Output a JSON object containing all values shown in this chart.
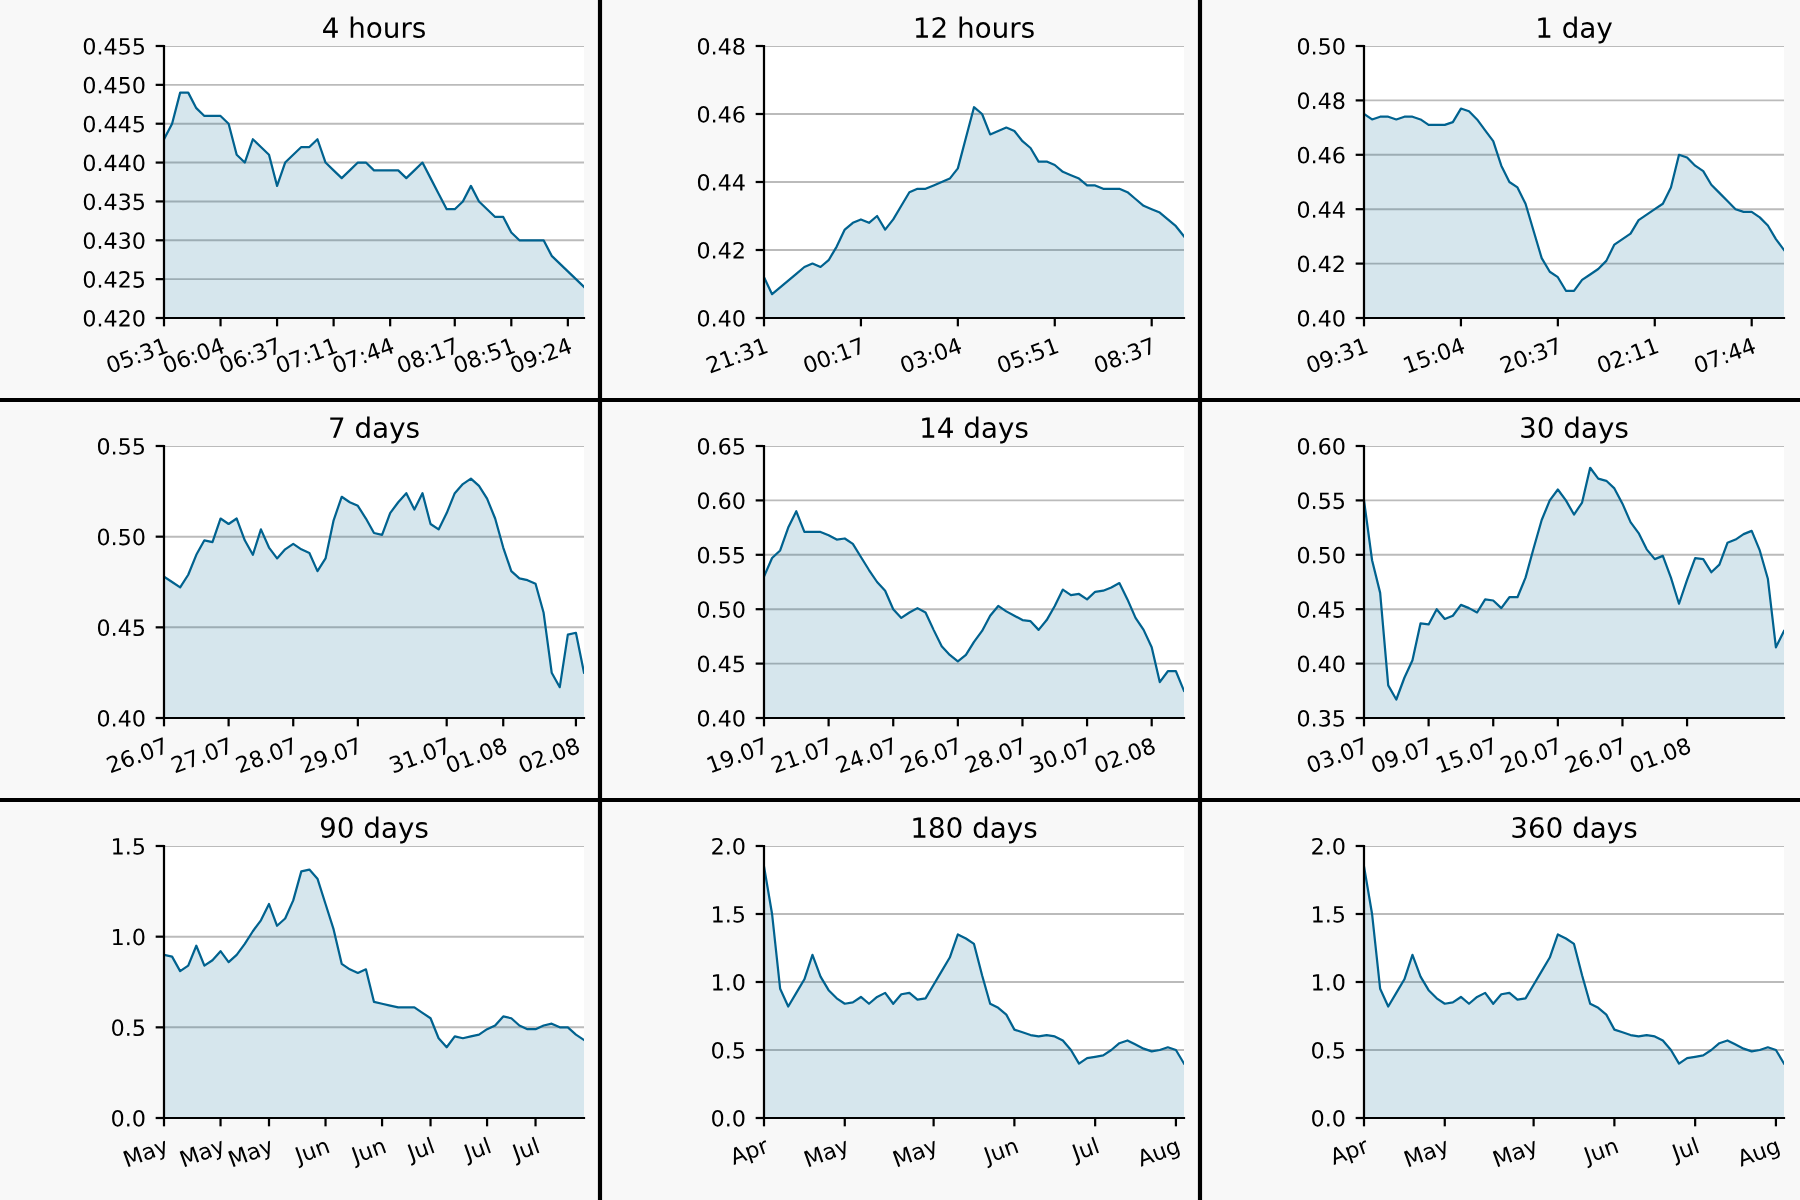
{
  "chart_data": [
    {
      "type": "area",
      "title": "4 hours",
      "color": "#00628f",
      "grid": "y",
      "categories": [
        "05:31",
        null,
        null,
        null,
        null,
        null,
        null,
        "06:04",
        null,
        null,
        null,
        null,
        null,
        null,
        "06:37",
        null,
        null,
        null,
        null,
        null,
        null,
        "07:11",
        null,
        null,
        null,
        null,
        null,
        null,
        "07:44",
        null,
        null,
        null,
        null,
        null,
        null,
        null,
        "08:17",
        null,
        null,
        null,
        null,
        null,
        null,
        "08:51",
        null,
        null,
        null,
        null,
        null,
        null,
        "09:24",
        null,
        null
      ],
      "values": [
        0.443,
        0.445,
        0.449,
        0.449,
        0.447,
        0.446,
        0.446,
        0.446,
        0.445,
        0.441,
        0.44,
        0.443,
        0.442,
        0.441,
        0.437,
        0.44,
        0.441,
        0.442,
        0.442,
        0.443,
        0.44,
        0.439,
        0.438,
        0.439,
        0.44,
        0.44,
        0.439,
        0.439,
        0.439,
        0.439,
        0.438,
        0.439,
        0.44,
        0.438,
        0.436,
        0.434,
        0.434,
        0.435,
        0.437,
        0.435,
        0.434,
        0.433,
        0.433,
        0.431,
        0.43,
        0.43,
        0.43,
        0.43,
        0.428,
        0.427,
        0.426,
        0.425,
        0.424
      ],
      "ylim": [
        0.42,
        0.455
      ],
      "yticks": [
        {
          "value": 0.42,
          "label": "0.420"
        },
        {
          "value": 0.425,
          "label": "0.425"
        },
        {
          "value": 0.43,
          "label": "0.430"
        },
        {
          "value": 0.435,
          "label": "0.435"
        },
        {
          "value": 0.44,
          "label": "0.440"
        },
        {
          "value": 0.445,
          "label": "0.445"
        },
        {
          "value": 0.45,
          "label": "0.450"
        },
        {
          "value": 0.455,
          "label": "0.455"
        }
      ]
    },
    {
      "type": "area",
      "title": "12 hours",
      "color": "#00628f",
      "grid": "y",
      "categories": [
        "21:31",
        null,
        null,
        null,
        null,
        null,
        null,
        null,
        null,
        null,
        null,
        null,
        "00:17",
        null,
        null,
        null,
        null,
        null,
        null,
        null,
        null,
        null,
        null,
        null,
        "03:04",
        null,
        null,
        null,
        null,
        null,
        null,
        null,
        null,
        null,
        null,
        null,
        "05:51",
        null,
        null,
        null,
        null,
        null,
        null,
        null,
        null,
        null,
        null,
        null,
        "08:37",
        null,
        null,
        null,
        null
      ],
      "values": [
        0.412,
        0.407,
        0.409,
        0.411,
        0.413,
        0.415,
        0.416,
        0.415,
        0.417,
        0.421,
        0.426,
        0.428,
        0.429,
        0.428,
        0.43,
        0.426,
        0.429,
        0.433,
        0.437,
        0.438,
        0.438,
        0.439,
        0.44,
        0.441,
        0.444,
        0.453,
        0.462,
        0.46,
        0.454,
        0.455,
        0.456,
        0.455,
        0.452,
        0.45,
        0.446,
        0.446,
        0.445,
        0.443,
        0.442,
        0.441,
        0.439,
        0.439,
        0.438,
        0.438,
        0.438,
        0.437,
        0.435,
        0.433,
        0.432,
        0.431,
        0.429,
        0.427,
        0.424
      ],
      "ylim": [
        0.4,
        0.48
      ],
      "yticks": [
        {
          "value": 0.4,
          "label": "0.40"
        },
        0.42,
        0.44,
        0.46,
        0.48
      ]
    },
    {
      "type": "area",
      "title": "1 day",
      "color": "#00628f",
      "grid": "y",
      "categories": [
        "09:31",
        null,
        null,
        null,
        null,
        null,
        null,
        null,
        null,
        null,
        null,
        null,
        "15:04",
        null,
        null,
        null,
        null,
        null,
        null,
        null,
        null,
        null,
        null,
        null,
        "20:37",
        null,
        null,
        null,
        null,
        null,
        null,
        null,
        null,
        null,
        null,
        null,
        "02:11",
        null,
        null,
        null,
        null,
        null,
        null,
        null,
        null,
        null,
        null,
        null,
        "07:44",
        null,
        null,
        null,
        null
      ],
      "values": [
        0.475,
        0.473,
        0.474,
        0.474,
        0.473,
        0.474,
        0.474,
        0.473,
        0.471,
        0.471,
        0.471,
        0.472,
        0.477,
        0.476,
        0.473,
        0.469,
        0.465,
        0.456,
        0.45,
        0.448,
        0.442,
        0.432,
        0.422,
        0.417,
        0.415,
        0.41,
        0.41,
        0.414,
        0.416,
        0.418,
        0.421,
        0.427,
        0.429,
        0.431,
        0.436,
        0.438,
        0.44,
        0.442,
        0.448,
        0.46,
        0.459,
        0.456,
        0.454,
        0.449,
        0.446,
        0.443,
        0.44,
        0.439,
        0.439,
        0.437,
        0.434,
        0.429,
        0.425
      ],
      "ylim": [
        0.4,
        0.5
      ],
      "yticks": [
        {
          "value": 0.4,
          "label": "0.40"
        },
        0.42,
        0.44,
        0.46,
        0.48,
        {
          "value": 0.5,
          "label": "0.50"
        }
      ]
    },
    {
      "type": "area",
      "title": "7 days",
      "color": "#00628f",
      "grid": "y",
      "categories": [
        "26.07",
        null,
        null,
        null,
        null,
        null,
        null,
        null,
        "27.07",
        null,
        null,
        null,
        null,
        null,
        null,
        null,
        "28.07",
        null,
        null,
        null,
        null,
        null,
        null,
        null,
        "29.07",
        null,
        null,
        null,
        null,
        null,
        null,
        null,
        null,
        null,
        null,
        "31.07",
        null,
        null,
        null,
        null,
        null,
        null,
        "01.08",
        null,
        null,
        null,
        null,
        null,
        null,
        null,
        null,
        "02.08",
        null
      ],
      "values": [
        0.478,
        0.475,
        0.472,
        0.479,
        0.49,
        0.498,
        0.497,
        0.51,
        0.507,
        0.51,
        0.498,
        0.49,
        0.504,
        0.494,
        0.488,
        0.493,
        0.496,
        0.493,
        0.491,
        0.481,
        0.488,
        0.509,
        0.522,
        0.519,
        0.517,
        0.51,
        0.502,
        0.501,
        0.513,
        0.519,
        0.524,
        0.515,
        0.524,
        0.507,
        0.504,
        0.513,
        0.524,
        0.529,
        0.532,
        0.528,
        0.521,
        0.51,
        0.494,
        0.481,
        0.477,
        0.476,
        0.474,
        0.458,
        0.425,
        0.417,
        0.446,
        0.447,
        0.425
      ],
      "ylim": [
        0.4,
        0.55
      ],
      "yticks": [
        {
          "value": 0.4,
          "label": "0.40"
        },
        0.45,
        {
          "value": 0.5,
          "label": "0.50"
        },
        0.55
      ]
    },
    {
      "type": "area",
      "title": "14 days",
      "color": "#00628f",
      "grid": "y",
      "categories": [
        "19.07",
        null,
        null,
        null,
        null,
        null,
        null,
        null,
        "21.07",
        null,
        null,
        null,
        null,
        null,
        null,
        null,
        "24.07",
        null,
        null,
        null,
        null,
        null,
        null,
        null,
        "26.07",
        null,
        null,
        null,
        null,
        null,
        null,
        null,
        "28.07",
        null,
        null,
        null,
        null,
        null,
        null,
        null,
        "30.07",
        null,
        null,
        null,
        null,
        null,
        null,
        null,
        "02.08",
        null,
        null,
        null,
        null
      ],
      "values": [
        0.53,
        0.547,
        0.554,
        0.575,
        0.59,
        0.571,
        0.571,
        0.571,
        0.568,
        0.564,
        0.565,
        0.56,
        0.548,
        0.536,
        0.525,
        0.517,
        0.5,
        0.492,
        0.497,
        0.501,
        0.497,
        0.481,
        0.466,
        0.458,
        0.452,
        0.458,
        0.47,
        0.48,
        0.494,
        0.503,
        0.498,
        0.494,
        0.49,
        0.489,
        0.481,
        0.49,
        0.503,
        0.518,
        0.513,
        0.514,
        0.509,
        0.516,
        0.517,
        0.52,
        0.524,
        0.509,
        0.492,
        0.481,
        0.465,
        0.433,
        0.443,
        0.443,
        0.425
      ],
      "ylim": [
        0.4,
        0.65
      ],
      "yticks": [
        {
          "value": 0.4,
          "label": "0.40"
        },
        0.45,
        {
          "value": 0.5,
          "label": "0.50"
        },
        0.55,
        {
          "value": 0.6,
          "label": "0.60"
        },
        0.65
      ]
    },
    {
      "type": "area",
      "title": "30 days",
      "color": "#00628f",
      "grid": "y",
      "categories": [
        "03.07",
        null,
        null,
        null,
        null,
        null,
        null,
        null,
        "09.07",
        null,
        null,
        null,
        null,
        null,
        null,
        null,
        "15.07",
        null,
        null,
        null,
        null,
        null,
        null,
        null,
        "20.07",
        null,
        null,
        null,
        null,
        null,
        null,
        null,
        "26.07",
        null,
        null,
        null,
        null,
        null,
        null,
        null,
        "01.08",
        null,
        null,
        null,
        null,
        null,
        null,
        null,
        null,
        null,
        null,
        null,
        null
      ],
      "values": [
        0.55,
        0.495,
        0.465,
        0.38,
        0.367,
        0.387,
        0.403,
        0.437,
        0.436,
        0.45,
        0.441,
        0.444,
        0.454,
        0.451,
        0.447,
        0.459,
        0.458,
        0.451,
        0.461,
        0.461,
        0.479,
        0.506,
        0.532,
        0.55,
        0.56,
        0.55,
        0.537,
        0.548,
        0.58,
        0.57,
        0.568,
        0.561,
        0.547,
        0.53,
        0.52,
        0.505,
        0.496,
        0.499,
        0.479,
        0.455,
        0.477,
        0.497,
        0.496,
        0.484,
        0.491,
        0.511,
        0.514,
        0.519,
        0.522,
        0.504,
        0.478,
        0.415,
        0.43
      ],
      "ylim": [
        0.35,
        0.6
      ],
      "yticks": [
        0.35,
        {
          "value": 0.4,
          "label": "0.40"
        },
        0.45,
        {
          "value": 0.5,
          "label": "0.50"
        },
        0.55,
        {
          "value": 0.6,
          "label": "0.60"
        }
      ]
    },
    {
      "type": "area",
      "title": "90 days",
      "color": "#00628f",
      "grid": "y",
      "categories": [
        "May",
        null,
        null,
        null,
        null,
        null,
        null,
        "May",
        null,
        null,
        null,
        null,
        null,
        "May",
        null,
        null,
        null,
        null,
        null,
        null,
        "Jun",
        null,
        null,
        null,
        null,
        null,
        null,
        "Jun",
        null,
        null,
        null,
        null,
        null,
        "Jul",
        null,
        null,
        null,
        null,
        null,
        null,
        "Jul",
        null,
        null,
        null,
        null,
        null,
        "Jul",
        null,
        null,
        null,
        null,
        null,
        null
      ],
      "values": [
        0.9,
        0.89,
        0.81,
        0.84,
        0.95,
        0.84,
        0.87,
        0.92,
        0.86,
        0.9,
        0.96,
        1.03,
        1.09,
        1.18,
        1.06,
        1.1,
        1.2,
        1.36,
        1.37,
        1.32,
        1.18,
        1.04,
        0.85,
        0.82,
        0.8,
        0.82,
        0.64,
        0.63,
        0.62,
        0.61,
        0.61,
        0.61,
        0.58,
        0.55,
        0.44,
        0.39,
        0.45,
        0.44,
        0.45,
        0.46,
        0.49,
        0.51,
        0.56,
        0.55,
        0.51,
        0.49,
        0.49,
        0.51,
        0.52,
        0.5,
        0.5,
        0.46,
        0.43
      ],
      "ylim": [
        0,
        1.5
      ],
      "yticks": [
        {
          "value": 0,
          "label": "0.0"
        },
        0.5,
        {
          "value": 1,
          "label": "1.0"
        },
        1.5
      ]
    },
    {
      "type": "area",
      "title": "180 days",
      "color": "#00628f",
      "grid": "y",
      "categories": [
        "Apr",
        null,
        null,
        null,
        null,
        null,
        null,
        null,
        null,
        null,
        "May",
        null,
        null,
        null,
        null,
        null,
        null,
        null,
        null,
        null,
        null,
        "May",
        null,
        null,
        null,
        null,
        null,
        null,
        null,
        null,
        null,
        "Jun",
        null,
        null,
        null,
        null,
        null,
        null,
        null,
        null,
        null,
        "Jul",
        null,
        null,
        null,
        null,
        null,
        null,
        null,
        null,
        null,
        "Aug",
        null
      ],
      "values": [
        1.85,
        1.5,
        0.95,
        0.82,
        0.92,
        1.02,
        1.2,
        1.04,
        0.94,
        0.88,
        0.84,
        0.85,
        0.89,
        0.84,
        0.89,
        0.92,
        0.84,
        0.91,
        0.92,
        0.87,
        0.88,
        0.98,
        1.08,
        1.18,
        1.35,
        1.32,
        1.28,
        1.05,
        0.84,
        0.81,
        0.76,
        0.65,
        0.63,
        0.61,
        0.6,
        0.61,
        0.6,
        0.57,
        0.5,
        0.4,
        0.44,
        0.45,
        0.46,
        0.5,
        0.55,
        0.57,
        0.54,
        0.51,
        0.49,
        0.5,
        0.52,
        0.5,
        0.4
      ],
      "ylim": [
        0,
        2
      ],
      "yticks": [
        {
          "value": 0,
          "label": "0.0"
        },
        0.5,
        {
          "value": 1,
          "label": "1.0"
        },
        1.5,
        {
          "value": 2,
          "label": "2.0"
        }
      ]
    },
    {
      "type": "area",
      "title": "360 days",
      "color": "#00628f",
      "grid": "y",
      "categories": [
        "Apr",
        null,
        null,
        null,
        null,
        null,
        null,
        null,
        null,
        null,
        "May",
        null,
        null,
        null,
        null,
        null,
        null,
        null,
        null,
        null,
        null,
        "May",
        null,
        null,
        null,
        null,
        null,
        null,
        null,
        null,
        null,
        "Jun",
        null,
        null,
        null,
        null,
        null,
        null,
        null,
        null,
        null,
        "Jul",
        null,
        null,
        null,
        null,
        null,
        null,
        null,
        null,
        null,
        "Aug",
        null
      ],
      "values": [
        1.85,
        1.5,
        0.95,
        0.82,
        0.92,
        1.02,
        1.2,
        1.04,
        0.94,
        0.88,
        0.84,
        0.85,
        0.89,
        0.84,
        0.89,
        0.92,
        0.84,
        0.91,
        0.92,
        0.87,
        0.88,
        0.98,
        1.08,
        1.18,
        1.35,
        1.32,
        1.28,
        1.05,
        0.84,
        0.81,
        0.76,
        0.65,
        0.63,
        0.61,
        0.6,
        0.61,
        0.6,
        0.57,
        0.5,
        0.4,
        0.44,
        0.45,
        0.46,
        0.5,
        0.55,
        0.57,
        0.54,
        0.51,
        0.49,
        0.5,
        0.52,
        0.5,
        0.4
      ],
      "ylim": [
        0,
        2
      ],
      "yticks": [
        {
          "value": 0,
          "label": "0.0"
        },
        0.5,
        {
          "value": 1,
          "label": "1.0"
        },
        1.5,
        {
          "value": 2,
          "label": "2.0"
        }
      ]
    }
  ]
}
